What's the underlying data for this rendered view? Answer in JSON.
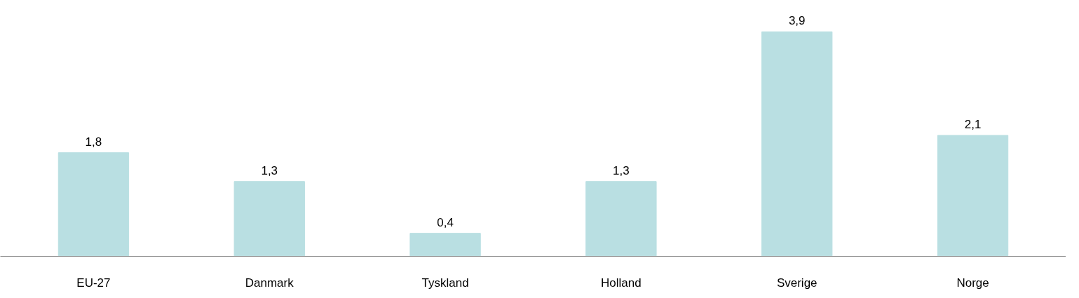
{
  "chart_data": {
    "type": "bar",
    "categories": [
      "EU-27",
      "Danmark",
      "Tyskland",
      "Holland",
      "Sverige",
      "Norge"
    ],
    "values": [
      1.8,
      1.3,
      0.4,
      1.3,
      3.9,
      2.1
    ],
    "value_labels": [
      "1,8",
      "1,3",
      "0,4",
      "1,3",
      "3,9",
      "2,1"
    ],
    "color": "#b9dfe2",
    "grid": false
  }
}
